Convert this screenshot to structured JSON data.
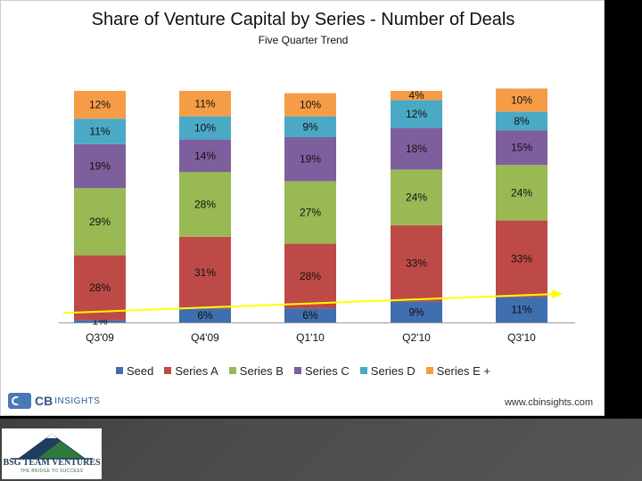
{
  "chart_data": {
    "type": "bar",
    "stacked": true,
    "title": "Share of Venture Capital by Series - Number of Deals",
    "subtitle": "Five Quarter Trend",
    "categories": [
      "Q3'09",
      "Q4'09",
      "Q1'10",
      "Q2'10",
      "Q3'10"
    ],
    "series": [
      {
        "name": "Seed",
        "color": "#3f6fae",
        "values": [
          1,
          6,
          6,
          9,
          11
        ]
      },
      {
        "name": "Series A",
        "color": "#be4a47",
        "values": [
          28,
          31,
          28,
          33,
          33
        ]
      },
      {
        "name": "Series B",
        "color": "#98b954",
        "values": [
          29,
          28,
          27,
          24,
          24
        ]
      },
      {
        "name": "Series C",
        "color": "#7e5f9e",
        "values": [
          19,
          14,
          19,
          18,
          15
        ]
      },
      {
        "name": "Series D",
        "color": "#4aaac6",
        "values": [
          11,
          10,
          9,
          12,
          8
        ]
      },
      {
        "name": "Series E +",
        "color": "#f59d46",
        "values": [
          12,
          11,
          10,
          4,
          10
        ]
      }
    ],
    "ylim": [
      0,
      100
    ],
    "legend": "bottom",
    "grid": false,
    "trend_arrow": {
      "color": "#ffff00",
      "from_y": 1,
      "to_y": 13
    }
  },
  "footer": {
    "brand": "CB",
    "brand_suffix": "INSIGHTS",
    "url": "www.cbinsights.com"
  },
  "bsg": {
    "name": "BSG TEAM VENTURES",
    "tagline": "THE BRIDGE TO SUCCESS"
  }
}
